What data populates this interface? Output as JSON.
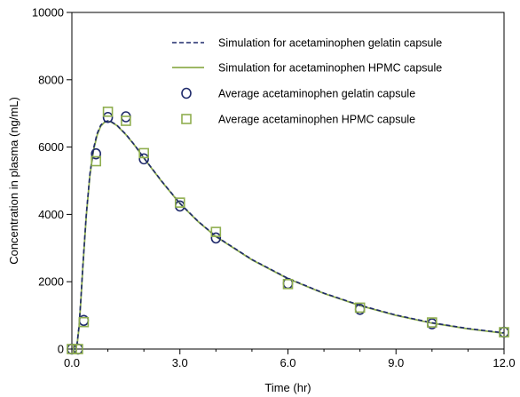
{
  "chart_data": {
    "type": "scatter",
    "title": "",
    "xlabel": "Time (hr)",
    "ylabel": "Concentration in plasma (ng/mL)",
    "xlim": [
      0,
      12
    ],
    "ylim": [
      0,
      10000
    ],
    "x_ticks": [
      "0.0",
      "3.0",
      "6.0",
      "9.0",
      "12.0"
    ],
    "y_ticks": [
      "0",
      "2000",
      "4000",
      "6000",
      "8000",
      "10000"
    ],
    "grid": false,
    "legend_position": "top-right",
    "series": [
      {
        "name": "Simulation for acetaminophen gelatin capsule",
        "kind": "line",
        "style": "dashed",
        "color": "#1f2a6b",
        "x": [
          0,
          0.1,
          0.15,
          0.2,
          0.25,
          0.3,
          0.4,
          0.5,
          0.6,
          0.7,
          0.8,
          0.9,
          1.0,
          1.1,
          1.25,
          1.5,
          1.75,
          2.0,
          2.5,
          3.0,
          3.5,
          4.0,
          5.0,
          6.0,
          7.0,
          8.0,
          9.0,
          10.0,
          11.0,
          12.0
        ],
        "y": [
          0,
          0,
          200,
          700,
          1500,
          2400,
          4000,
          5200,
          5950,
          6400,
          6650,
          6750,
          6780,
          6750,
          6650,
          6380,
          6050,
          5680,
          4980,
          4330,
          3800,
          3350,
          2660,
          2100,
          1660,
          1300,
          1010,
          780,
          610,
          480
        ]
      },
      {
        "name": "Simulation for  acetaminophen HPMC capsule",
        "kind": "line",
        "style": "solid",
        "color": "#8fae4f",
        "x": [
          0,
          0.1,
          0.15,
          0.2,
          0.25,
          0.3,
          0.4,
          0.5,
          0.6,
          0.7,
          0.8,
          0.9,
          1.0,
          1.1,
          1.25,
          1.5,
          1.75,
          2.0,
          2.5,
          3.0,
          3.5,
          4.0,
          5.0,
          6.0,
          7.0,
          8.0,
          9.0,
          10.0,
          11.0,
          12.0
        ],
        "y": [
          0,
          0,
          180,
          650,
          1450,
          2350,
          3950,
          5150,
          5900,
          6350,
          6620,
          6730,
          6770,
          6740,
          6640,
          6370,
          6040,
          5670,
          4970,
          4320,
          3790,
          3340,
          2650,
          2090,
          1650,
          1290,
          1000,
          770,
          600,
          470
        ]
      },
      {
        "name": "Average acetaminophen gelatin capsule",
        "kind": "marker",
        "marker": "circle",
        "color": "#1f2a6b",
        "x": [
          0,
          0.17,
          0.33,
          0.67,
          1.0,
          1.5,
          2.0,
          3.0,
          4.0,
          6.0,
          8.0,
          10.0,
          12.0
        ],
        "y": [
          0,
          0,
          850,
          5800,
          6880,
          6900,
          5650,
          4250,
          3300,
          1950,
          1180,
          750,
          500
        ]
      },
      {
        "name": "Average acetaminophen HPMC capsule",
        "kind": "marker",
        "marker": "square",
        "color": "#8fae4f",
        "x": [
          0,
          0.17,
          0.33,
          0.67,
          1.0,
          1.5,
          2.0,
          3.0,
          4.0,
          6.0,
          8.0,
          10.0,
          12.0
        ],
        "y": [
          0,
          0,
          800,
          5580,
          7050,
          6780,
          5820,
          4350,
          3480,
          1930,
          1230,
          790,
          500
        ]
      }
    ]
  }
}
